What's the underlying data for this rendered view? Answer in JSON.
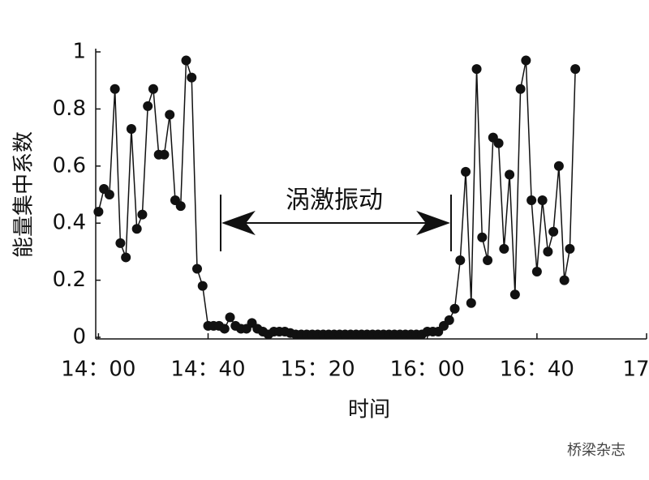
{
  "chart_data": {
    "type": "line",
    "x_label": "时间",
    "y_label": "能量集中系数",
    "annotation": "涡激振动",
    "watermark": "桥梁杂志",
    "x": [
      840,
      842,
      844,
      846,
      848,
      850,
      852,
      854,
      856,
      858,
      860,
      862,
      864,
      866,
      868,
      870,
      872,
      874,
      876,
      878,
      880,
      882,
      884,
      886,
      888,
      890,
      892,
      894,
      896,
      898,
      900,
      902,
      904,
      906,
      908,
      910,
      912,
      914,
      916,
      918,
      920,
      922,
      924,
      926,
      928,
      930,
      932,
      934,
      936,
      938,
      940,
      942,
      944,
      946,
      948,
      950,
      952,
      954,
      956,
      958,
      960,
      962,
      964,
      966,
      968,
      970,
      972,
      974,
      976,
      978,
      980,
      982,
      984,
      986,
      988,
      990,
      992,
      994,
      996,
      998,
      1000,
      1002,
      1004,
      1006,
      1008,
      1010,
      1012,
      1014
    ],
    "series": [
      {
        "name": "能量集中系数",
        "color": "#111111",
        "values": [
          0.44,
          0.52,
          0.5,
          0.87,
          0.33,
          0.28,
          0.73,
          0.38,
          0.43,
          0.81,
          0.87,
          0.64,
          0.64,
          0.78,
          0.48,
          0.46,
          0.97,
          0.91,
          0.24,
          0.18,
          0.04,
          0.04,
          0.04,
          0.03,
          0.07,
          0.04,
          0.03,
          0.03,
          0.05,
          0.03,
          0.02,
          0.01,
          0.02,
          0.02,
          0.02,
          0.015,
          0.01,
          0.01,
          0.01,
          0.01,
          0.01,
          0.01,
          0.01,
          0.01,
          0.01,
          0.01,
          0.01,
          0.01,
          0.01,
          0.01,
          0.01,
          0.01,
          0.01,
          0.01,
          0.01,
          0.01,
          0.01,
          0.01,
          0.01,
          0.01,
          0.02,
          0.02,
          0.02,
          0.04,
          0.06,
          0.1,
          0.27,
          0.58,
          0.12,
          0.94,
          0.35,
          0.27,
          0.7,
          0.68,
          0.31,
          0.57,
          0.15,
          0.87,
          0.97,
          0.48,
          0.23,
          0.48,
          0.3,
          0.37,
          0.6,
          0.2,
          0.31,
          0.94
        ]
      }
    ],
    "xlim": [
      839,
      1040
    ],
    "xticks": [
      {
        "value": 840,
        "label": "14：00"
      },
      {
        "value": 880,
        "label": "14：40"
      },
      {
        "value": 920,
        "label": "15：20"
      },
      {
        "value": 960,
        "label": "16：00"
      },
      {
        "value": 1000,
        "label": "16：40"
      },
      {
        "value": 1040,
        "label": "17："
      }
    ],
    "ylim": [
      0,
      1
    ],
    "yticks": [
      0,
      0.2,
      0.4,
      0.6,
      0.8,
      1
    ],
    "grid": false
  }
}
